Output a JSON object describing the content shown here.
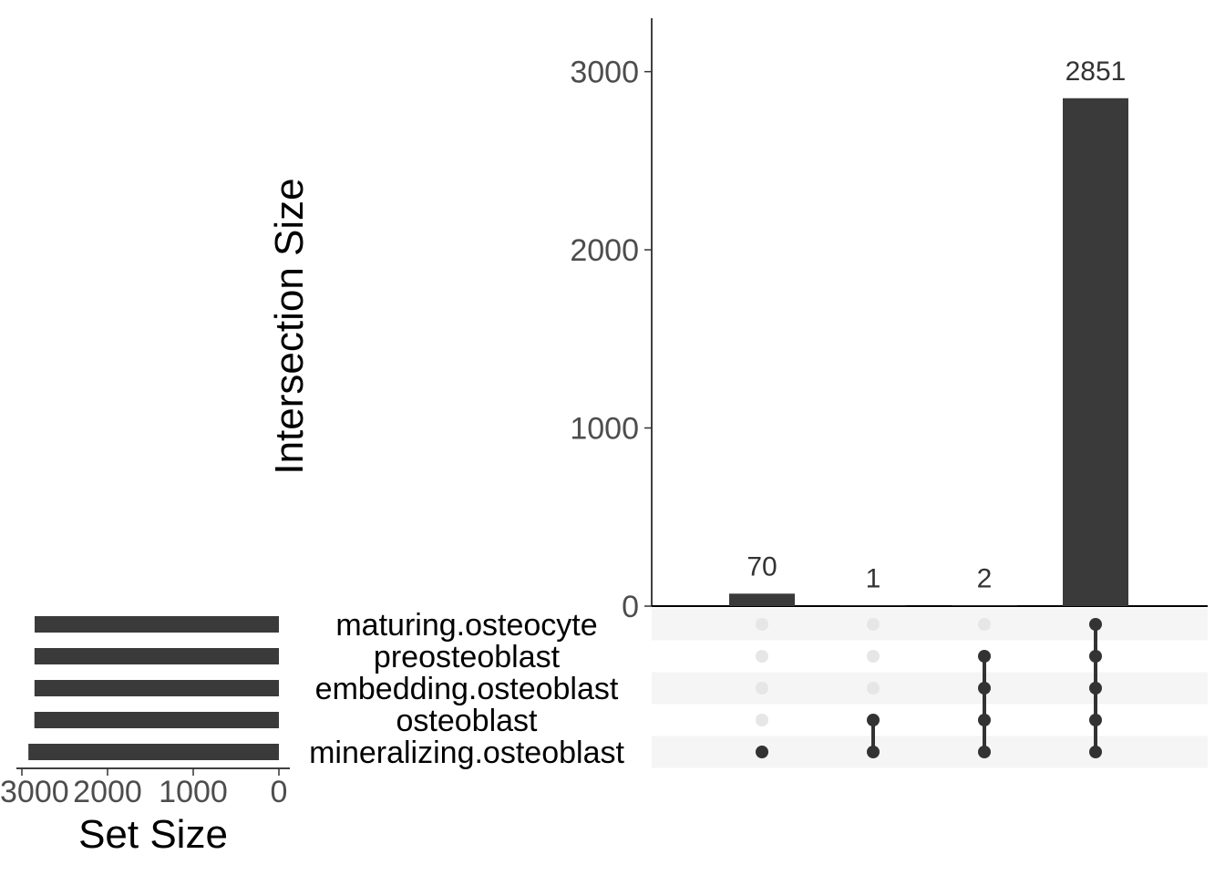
{
  "chart_data": {
    "type": "upset",
    "colors": {
      "bar": "#3a3a3a",
      "dot_active": "#333333",
      "dot_inactive": "#e6e6e6",
      "stripe": "#f5f5f5",
      "axis": "#000000"
    },
    "intersection_axis": {
      "title": "Intersection Size",
      "ylim": [
        0,
        3300
      ],
      "ticks": [
        0,
        1000,
        2000,
        3000
      ],
      "tick_labels": [
        "0",
        "1000",
        "2000",
        "3000"
      ]
    },
    "set_size_axis": {
      "title": "Set Size",
      "xlim": [
        0,
        3100
      ],
      "ticks": [
        3000,
        2000,
        1000,
        0
      ],
      "tick_labels": [
        "3000",
        "2000",
        "1000",
        "0"
      ]
    },
    "sets": [
      {
        "name": "maturing.osteocyte",
        "size": 2851
      },
      {
        "name": "preosteoblast",
        "size": 2853
      },
      {
        "name": "embedding.osteoblast",
        "size": 2853
      },
      {
        "name": "osteoblast",
        "size": 2854
      },
      {
        "name": "mineralizing.osteoblast",
        "size": 2924
      }
    ],
    "intersections": [
      {
        "size": 70,
        "label": "70",
        "members": [
          "mineralizing.osteoblast"
        ]
      },
      {
        "size": 1,
        "label": "1",
        "members": [
          "osteoblast",
          "mineralizing.osteoblast"
        ]
      },
      {
        "size": 2,
        "label": "2",
        "members": [
          "preosteoblast",
          "embedding.osteoblast",
          "osteoblast",
          "mineralizing.osteoblast"
        ]
      },
      {
        "size": 2851,
        "label": "2851",
        "members": [
          "maturing.osteocyte",
          "preosteoblast",
          "embedding.osteoblast",
          "osteoblast",
          "mineralizing.osteoblast"
        ]
      }
    ]
  }
}
